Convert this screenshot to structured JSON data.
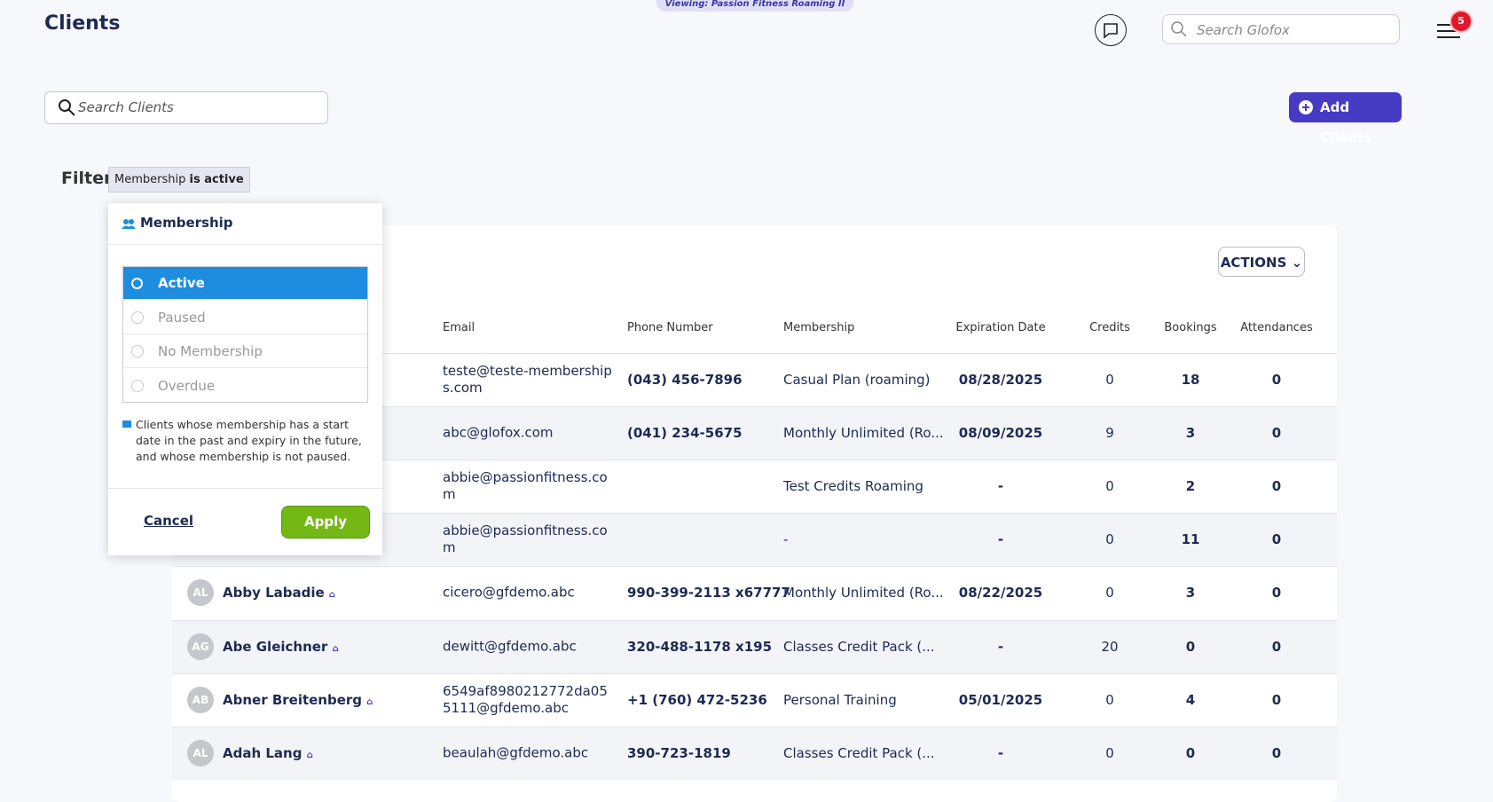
{
  "header": {
    "title": "Clients",
    "viewing": "Viewing: Passion Fitness Roaming II",
    "search_placeholder": "Search Glofox",
    "notifications": "5"
  },
  "toolbar": {
    "search_placeholder": "Search Clients",
    "add_button": "Add Clients"
  },
  "filter": {
    "label": "Filter",
    "chip_field": "Membership",
    "chip_condition": "is active"
  },
  "popup": {
    "title": "Membership",
    "options": [
      "Active",
      "Paused",
      "No Membership",
      "Overdue"
    ],
    "note": "Clients whose membership has a start date in the past and expiry in the future, and whose membership is not paused.",
    "cancel": "Cancel",
    "apply": "Apply"
  },
  "table": {
    "actions": "ACTIONS",
    "columns": [
      "Email",
      "Phone Number",
      "Membership",
      "Expiration Date",
      "Credits",
      "Bookings",
      "Attendances"
    ],
    "rows": [
      {
        "email": "teste@teste-memberships.com",
        "phone": "(043) 456-7896",
        "membership": "Casual Plan (roaming)",
        "expiry": "08/28/2025",
        "credits": 0,
        "bookings": 18,
        "attendances": 0
      },
      {
        "email": "abc@glofox.com",
        "phone": "(041) 234-5675",
        "membership": "Monthly Unlimited (Ro...",
        "expiry": "08/09/2025",
        "credits": 9,
        "bookings": 3,
        "attendances": 0
      },
      {
        "email": "abbie@passionfitness.com",
        "phone": null,
        "membership": "Test Credits Roaming",
        "expiry": "-",
        "credits": 0,
        "bookings": 2,
        "attendances": 0
      },
      {
        "email": "abbie@passionfitness.com",
        "phone": null,
        "membership": "-",
        "expiry": "-",
        "credits": 0,
        "bookings": 11,
        "attendances": 0
      },
      {
        "initials": "AL",
        "name": "Abby Labadie",
        "email": "cicero@gfdemo.abc",
        "phone": "990-399-2113 x67777",
        "membership": "Monthly Unlimited (Ro...",
        "expiry": "08/22/2025",
        "credits": 0,
        "bookings": 3,
        "attendances": 0
      },
      {
        "initials": "AG",
        "name": "Abe Gleichner",
        "email": "dewitt@gfdemo.abc",
        "phone": "320-488-1178 x195",
        "membership": "Classes Credit Pack (...",
        "expiry": "-",
        "credits": 20,
        "bookings": 0,
        "attendances": 0
      },
      {
        "initials": "AB",
        "name": "Abner Breitenberg",
        "email": "6549af8980212772da055111@gfdemo.abc",
        "phone": "+1 (760) 472-5236",
        "membership": "Personal Training",
        "expiry": "05/01/2025",
        "credits": 0,
        "bookings": 4,
        "attendances": 0
      },
      {
        "initials": "AL",
        "name": "Adah Lang",
        "email": "beaulah@gfdemo.abc",
        "phone": "390-723-1819",
        "membership": "Classes Credit Pack (...",
        "expiry": "-",
        "credits": 0,
        "bookings": 0,
        "attendances": 0
      }
    ]
  }
}
